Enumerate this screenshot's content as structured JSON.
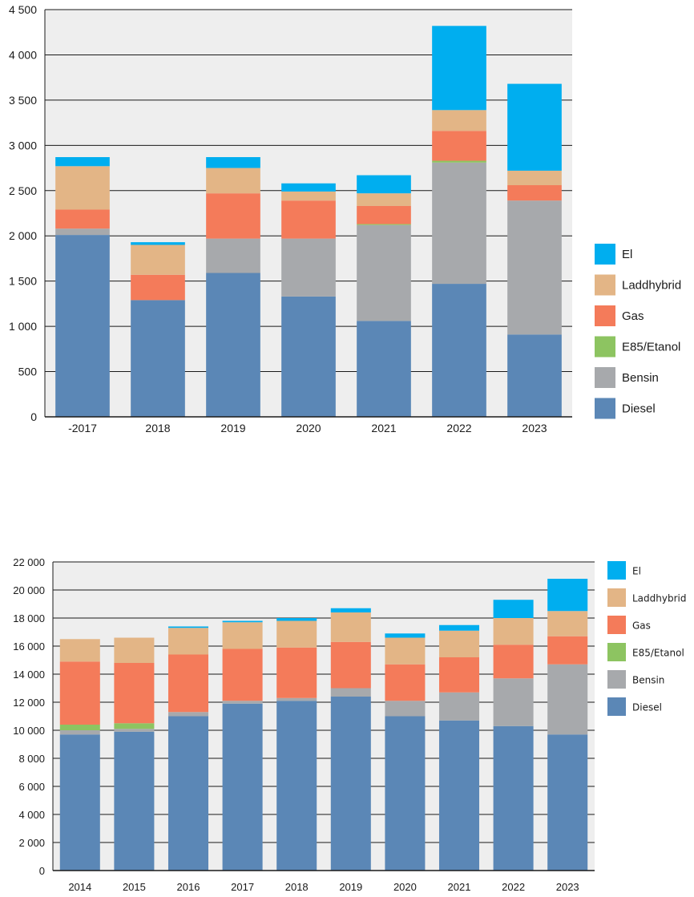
{
  "colors": {
    "El": "#00aeef",
    "Laddhybrid": "#e3b586",
    "Gas": "#f47b5a",
    "E85/Etanol": "#8dc461",
    "Bensin": "#a7a9ac",
    "Diesel": "#5b87b6",
    "plot_bg": "#eeeeee",
    "grid": "#1a1a1a"
  },
  "chart_data": [
    {
      "type": "bar",
      "stacked": true,
      "title": "",
      "xlabel": "",
      "ylabel": "",
      "categories": [
        "-2017",
        "2018",
        "2019",
        "2020",
        "2021",
        "2022",
        "2023"
      ],
      "ylim": [
        0,
        4500
      ],
      "yticks": [
        0,
        500,
        1000,
        1500,
        2000,
        2500,
        3000,
        3500,
        4000,
        4500
      ],
      "ytick_labels": [
        "0",
        "500",
        "1 000",
        "1 500",
        "2 000",
        "2 500",
        "3 000",
        "3 500",
        "4 000",
        "4 500"
      ],
      "grid": true,
      "legend_position": "right",
      "legend_order": [
        "El",
        "Laddhybrid",
        "Gas",
        "E85/Etanol",
        "Bensin",
        "Diesel"
      ],
      "series": [
        {
          "name": "Diesel",
          "values": [
            2010,
            1290,
            1590,
            1330,
            1060,
            1470,
            910
          ]
        },
        {
          "name": "Bensin",
          "values": [
            70,
            0,
            380,
            640,
            1060,
            1340,
            1480
          ]
        },
        {
          "name": "E85/Etanol",
          "values": [
            0,
            0,
            0,
            0,
            10,
            20,
            0
          ]
        },
        {
          "name": "Gas",
          "values": [
            210,
            280,
            500,
            420,
            200,
            330,
            170
          ]
        },
        {
          "name": "Laddhybrid",
          "values": [
            480,
            330,
            280,
            100,
            140,
            230,
            160
          ]
        },
        {
          "name": "El",
          "values": [
            100,
            30,
            120,
            90,
            200,
            930,
            960
          ]
        }
      ]
    },
    {
      "type": "bar",
      "stacked": true,
      "title": "",
      "xlabel": "",
      "ylabel": "",
      "categories": [
        "2014",
        "2015",
        "2016",
        "2017",
        "2018",
        "2019",
        "2020",
        "2021",
        "2022",
        "2023"
      ],
      "ylim": [
        0,
        22000
      ],
      "yticks": [
        0,
        2000,
        4000,
        6000,
        8000,
        10000,
        12000,
        14000,
        16000,
        18000,
        20000,
        22000
      ],
      "ytick_labels": [
        "0",
        "2 000",
        "4 000",
        "6 000",
        "8 000",
        "10 000",
        "12 000",
        "14 000",
        "16 000",
        "18 000",
        "20 000",
        "22 000"
      ],
      "grid": true,
      "legend_position": "top-right",
      "legend_order": [
        "El",
        "Laddhybrid",
        "Gas",
        "E85/Etanol",
        "Bensin",
        "Diesel"
      ],
      "series": [
        {
          "name": "Diesel",
          "values": [
            9700,
            9900,
            11000,
            11900,
            12100,
            12400,
            11000,
            10700,
            10300,
            9700
          ]
        },
        {
          "name": "Bensin",
          "values": [
            300,
            200,
            300,
            200,
            200,
            600,
            1100,
            2000,
            3400,
            5000
          ]
        },
        {
          "name": "E85/Etanol",
          "values": [
            400,
            400,
            0,
            0,
            0,
            0,
            0,
            0,
            0,
            0
          ]
        },
        {
          "name": "Gas",
          "values": [
            4500,
            4300,
            4100,
            3700,
            3600,
            3300,
            2600,
            2500,
            2400,
            2000
          ]
        },
        {
          "name": "Laddhybrid",
          "values": [
            1600,
            1800,
            1900,
            1900,
            1900,
            2100,
            1900,
            1900,
            1900,
            1800
          ]
        },
        {
          "name": "El",
          "values": [
            0,
            0,
            100,
            100,
            200,
            300,
            300,
            400,
            1300,
            2300
          ]
        }
      ]
    }
  ]
}
